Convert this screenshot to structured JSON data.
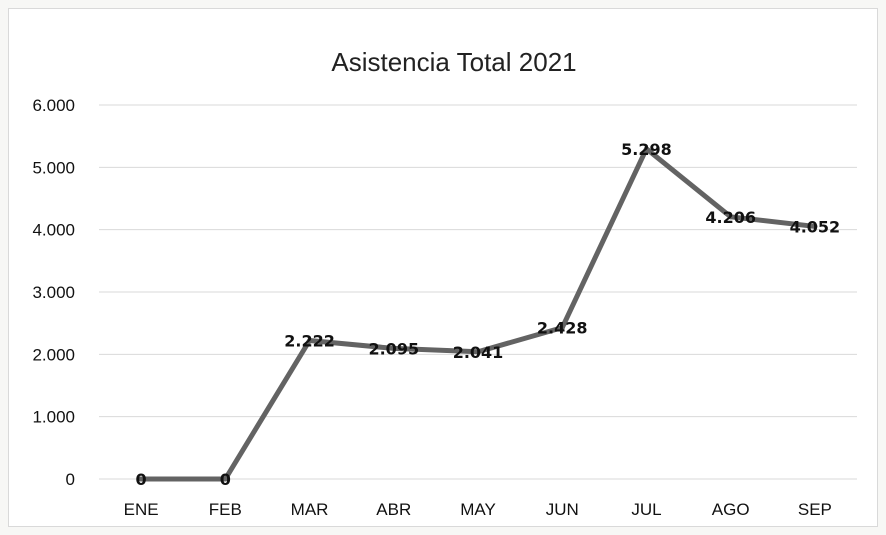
{
  "chart_data": {
    "type": "line",
    "title": "Asistencia Total 2021",
    "xlabel": "",
    "ylabel": "",
    "categories": [
      "ENE",
      "FEB",
      "MAR",
      "ABR",
      "MAY",
      "JUN",
      "JUL",
      "AGO",
      "SEP"
    ],
    "y_tick_labels": [
      "0",
      "1.000",
      "2.000",
      "3.000",
      "4.000",
      "5.000",
      "6.000"
    ],
    "ylim": [
      0,
      6000
    ],
    "grid": true,
    "legend": "none",
    "series": [
      {
        "values": [
          0,
          0,
          2222,
          2095,
          2041,
          2428,
          5298,
          4206,
          4052
        ],
        "data_labels": [
          "0",
          "0",
          "2.222",
          "2.095",
          "2.041",
          "2.428",
          "5.298",
          "4.206",
          "4.052"
        ],
        "color": "#636363"
      }
    ]
  }
}
